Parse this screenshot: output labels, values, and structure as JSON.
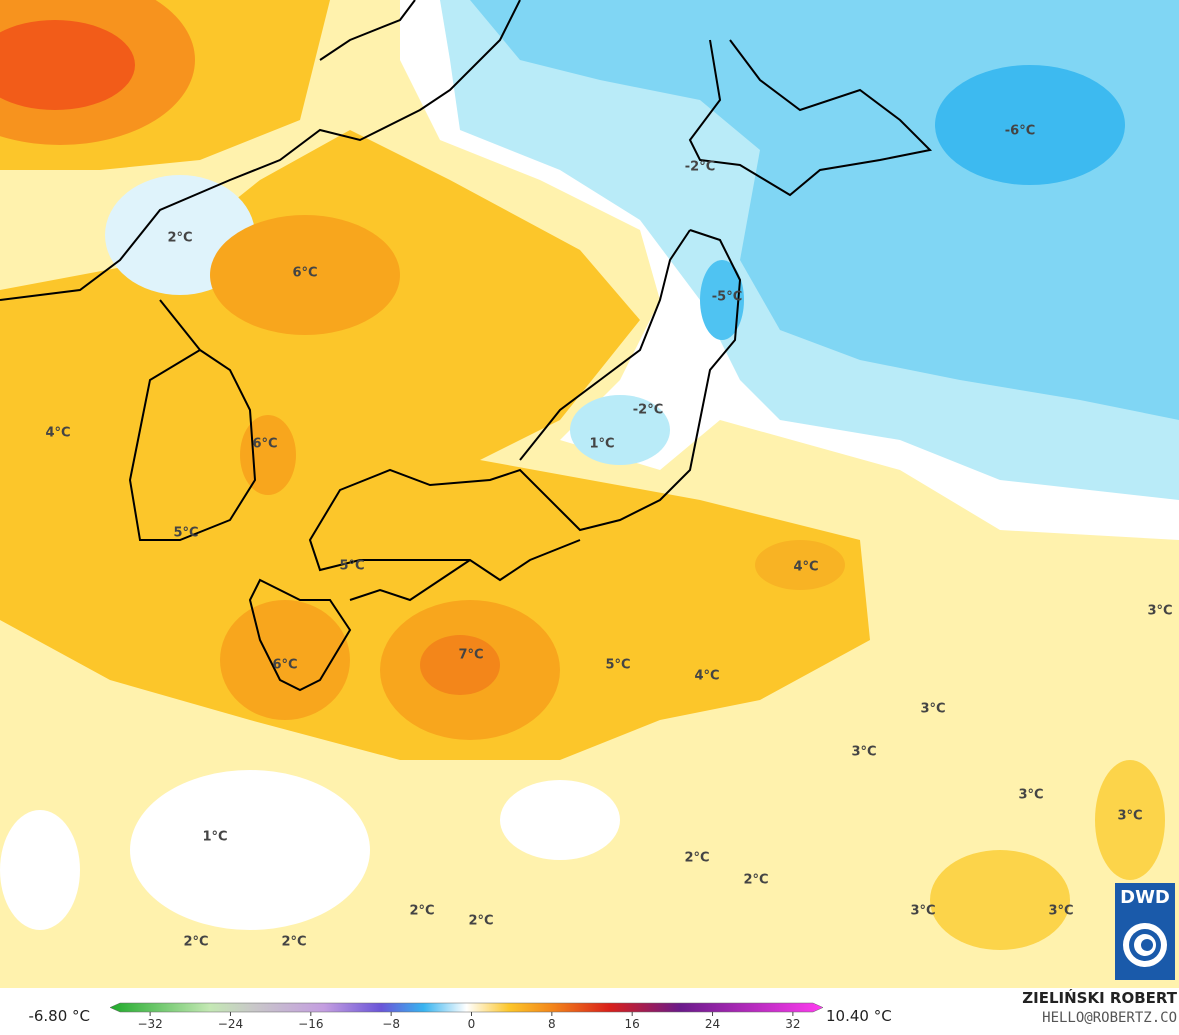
{
  "map": {
    "labels": [
      "-6°C",
      "-2°C",
      "2°C",
      "6°C",
      "-5°C",
      "-2°C",
      "1°C",
      "4°C",
      "6°C",
      "5°C",
      "5°C",
      "4°C",
      "3°C",
      "7°C",
      "5°C",
      "4°C",
      "6°C",
      "3°C",
      "3°C",
      "3°C",
      "3°C",
      "1°C",
      "2°C",
      "2°C",
      "3°C",
      "3°C",
      "2°C",
      "2°C",
      "2°C",
      "2°C"
    ],
    "min_label": "-6.80 °C",
    "max_label": "10.40 °C"
  },
  "colorbar": {
    "lim": [
      -35,
      35
    ],
    "ticks": [
      {
        "value": -32,
        "label": "−32"
      },
      {
        "value": -24,
        "label": "−24"
      },
      {
        "value": -16,
        "label": "−16"
      },
      {
        "value": -8,
        "label": "−8"
      },
      0,
      8,
      16,
      24,
      32
    ]
  },
  "credit": {
    "author": "ZIELIŃSKI ROBERT",
    "email": "HELLO@ROBERTZ.CO"
  },
  "logo": "DWD"
}
